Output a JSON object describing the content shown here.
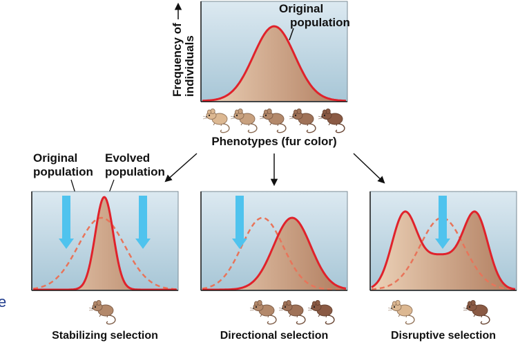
{
  "top_panel": {
    "y_axis_label_line1": "Frequency of",
    "y_axis_label_line2": "individuals",
    "curve_label_line1": "Original",
    "curve_label_line2": "population",
    "x_axis_label": "Phenotypes (fur color)"
  },
  "callouts": {
    "original_line1": "Original",
    "original_line2": "population",
    "evolved_line1": "Evolved",
    "evolved_line2": "population"
  },
  "panels": [
    {
      "title": "Stabilizing selection"
    },
    {
      "title": "Directional selection"
    },
    {
      "title": "Disruptive selection"
    }
  ],
  "stray_glyph": "e",
  "colors": {
    "evolved_curve": "#e0222b",
    "original_dashed": "#e8745a",
    "panel_top": "#dce9f1",
    "panel_bottom": "#a7c6d6",
    "fill_light": "#ecd2b8",
    "fill_dark": "#b07c5e",
    "selection_arrow": "#4fc3ee",
    "mouse_light": "#dcb892",
    "mouse_dark": "#8a5a44"
  },
  "icons": [
    "mouse-icon",
    "selection-arrow-icon",
    "flow-arrow-icon"
  ]
}
